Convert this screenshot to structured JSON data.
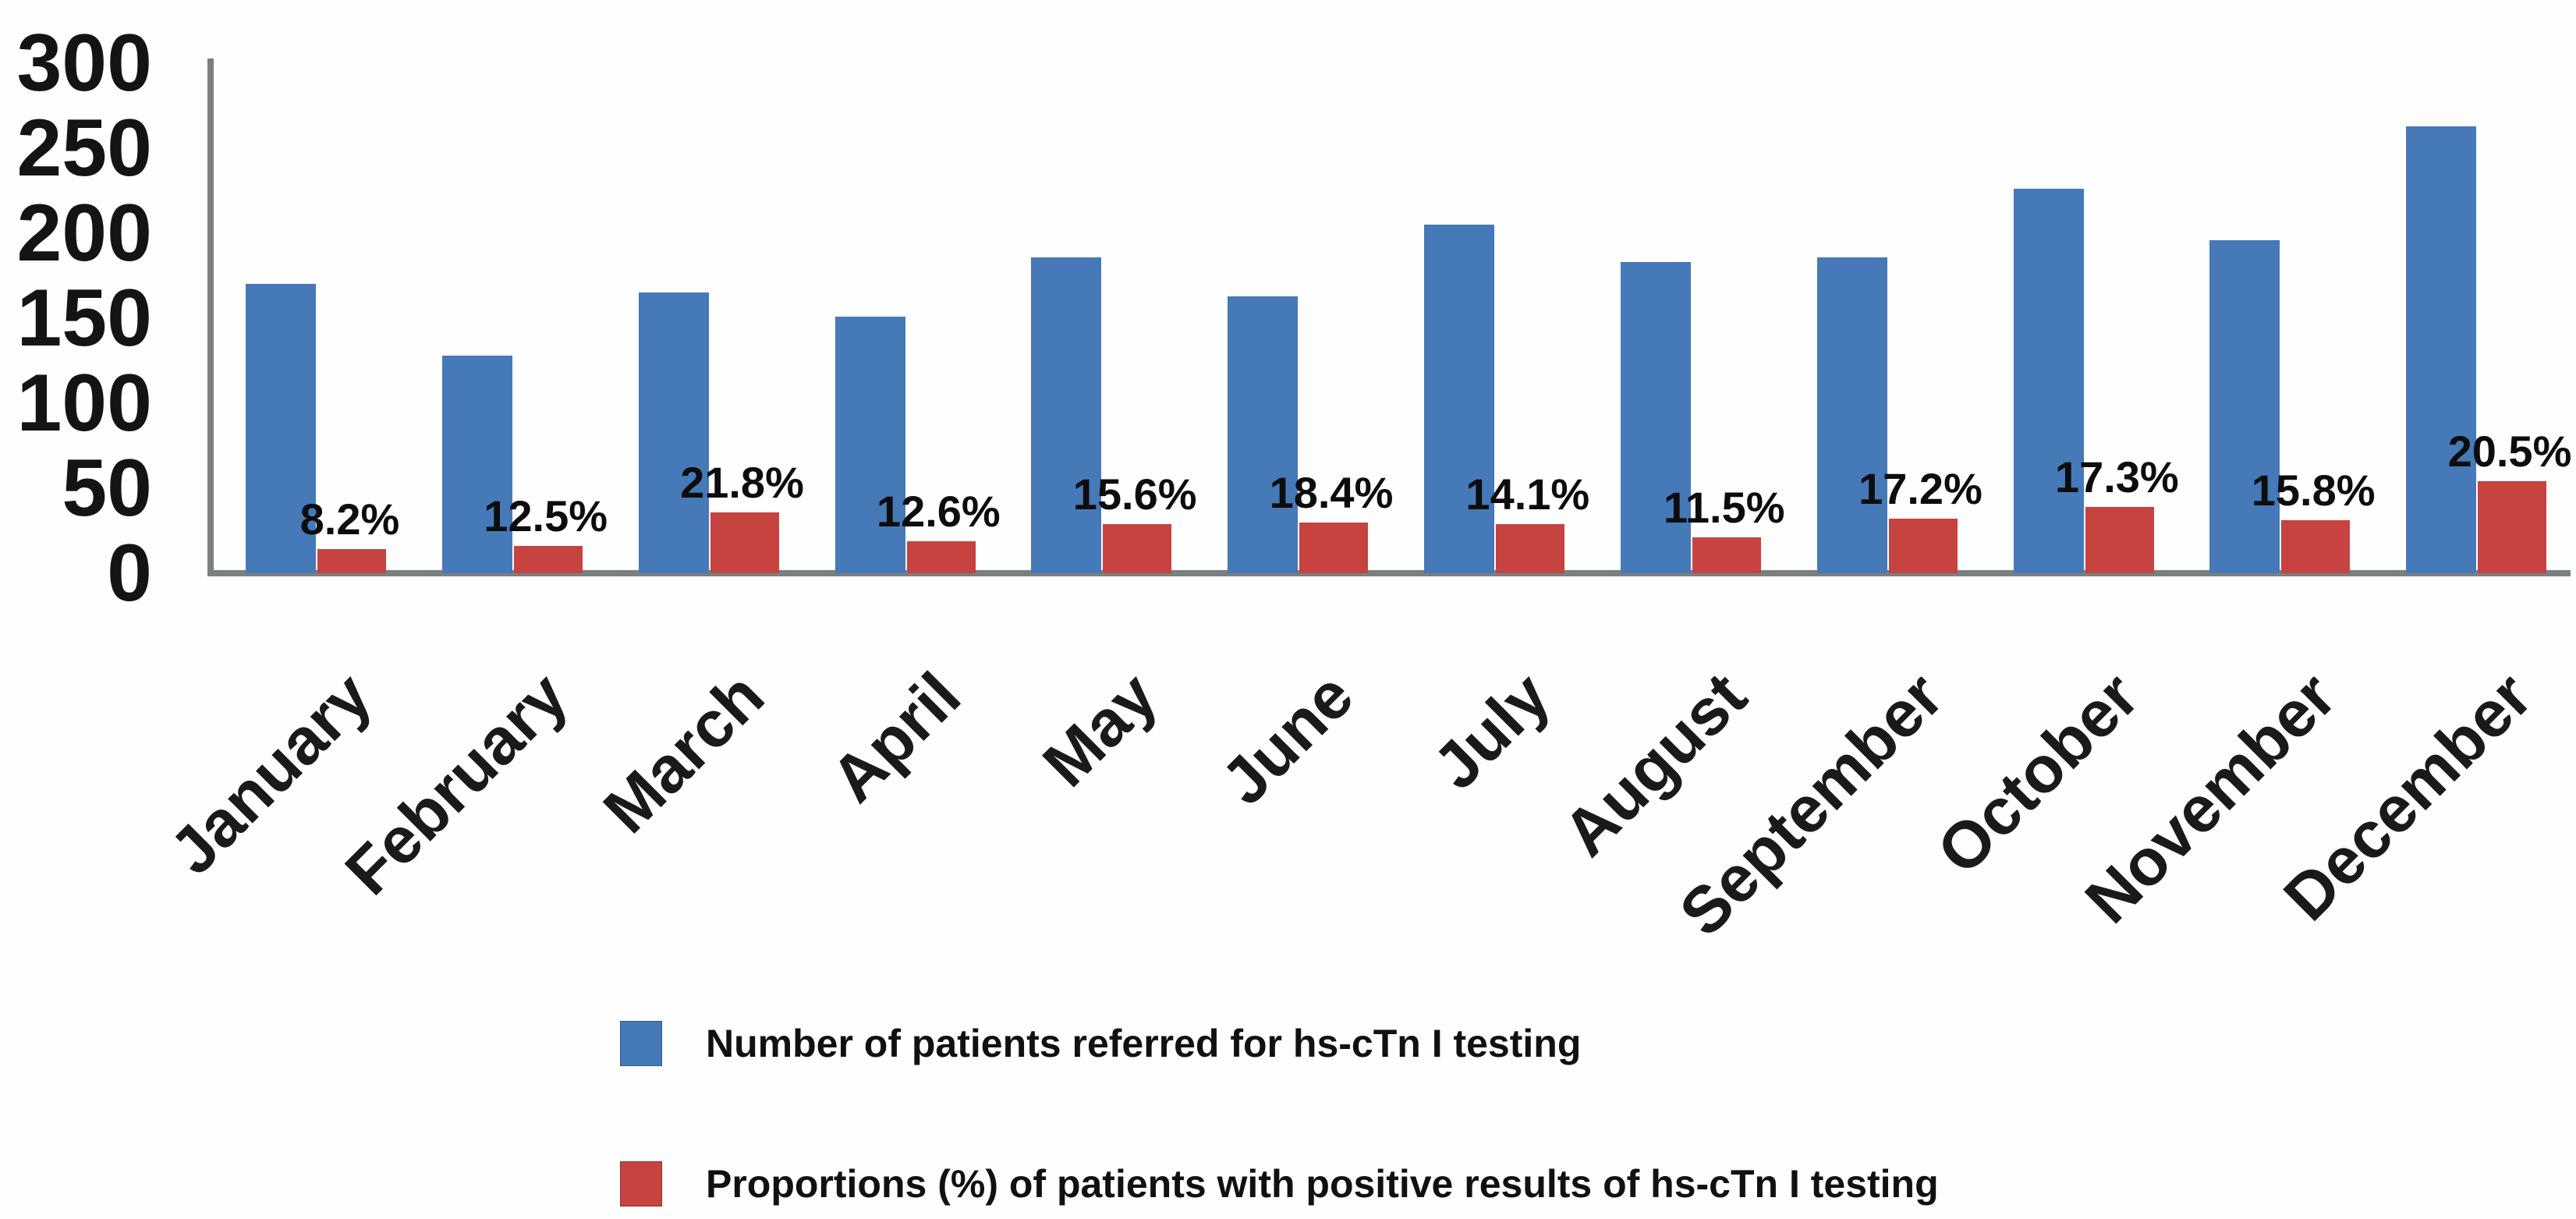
{
  "chart_data": {
    "type": "bar",
    "title": "",
    "xlabel": "",
    "ylabel": "",
    "ylim": [
      0,
      300
    ],
    "yticks": [
      300,
      250,
      200,
      150,
      100,
      50,
      0
    ],
    "grid": false,
    "legend_position": "bottom",
    "categories": [
      "January",
      "February",
      "March",
      "April",
      "May",
      "June",
      "July",
      "August",
      "September",
      "October",
      "November",
      "December"
    ],
    "series": [
      {
        "name": "Number of patients referred for hs-cTn I testing",
        "color": "#4579b8",
        "values": [
          170,
          128,
          165,
          151,
          186,
          163,
          205,
          183,
          186,
          226,
          196,
          263
        ]
      },
      {
        "name": "Proportions (%) of patients with positive results of hs-cTn I testing",
        "color": "#c64340",
        "values": [
          14,
          16,
          36,
          19,
          29,
          30,
          29,
          21,
          32,
          39,
          31,
          54
        ],
        "labels": [
          "8.2%",
          "12.5%",
          "21.8%",
          "12.6%",
          "15.6%",
          "18.4%",
          "14.1%",
          "11.5%",
          "17.2%",
          "17.3%",
          "15.8%",
          "20.5%"
        ]
      }
    ],
    "axis_color": "#7a7f80"
  }
}
